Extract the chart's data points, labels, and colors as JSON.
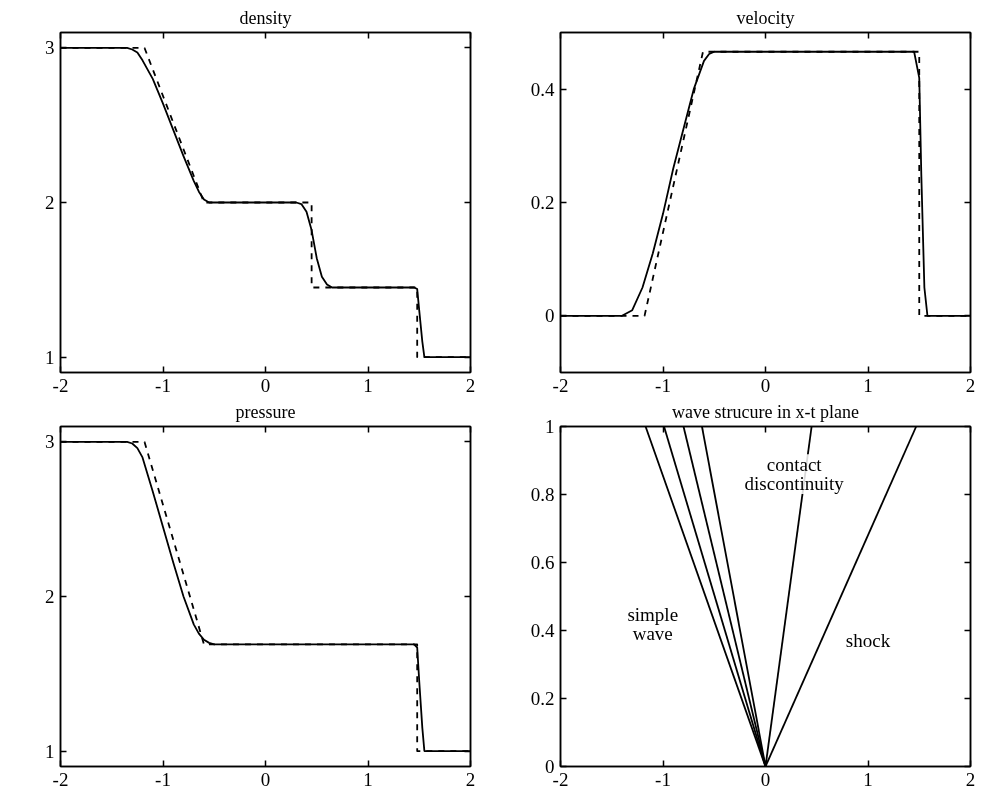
{
  "chart_data": [
    {
      "type": "line",
      "title": "density",
      "xlim": [
        -2,
        2
      ],
      "ylim": [
        0.9,
        3.1
      ],
      "xticks": [
        -2,
        -1,
        0,
        1,
        2
      ],
      "yticks": [
        1,
        2,
        3
      ],
      "series": [
        {
          "color": "#000000",
          "line_style": "solid",
          "x": [
            -2,
            -1.35,
            -1.3,
            -1.25,
            -1.2,
            -1.1,
            -1.0,
            -0.9,
            -0.8,
            -0.7,
            -0.65,
            -0.6,
            -0.55,
            -0.5,
            0.3,
            0.35,
            0.4,
            0.45,
            0.5,
            0.55,
            0.6,
            0.65,
            1.45,
            1.48,
            1.5,
            1.53,
            1.55,
            2
          ],
          "values": [
            3,
            3,
            2.99,
            2.97,
            2.92,
            2.8,
            2.64,
            2.47,
            2.3,
            2.14,
            2.07,
            2.02,
            2.0,
            2.0,
            2.0,
            1.99,
            1.94,
            1.82,
            1.64,
            1.52,
            1.47,
            1.45,
            1.45,
            1.44,
            1.3,
            1.1,
            1.0,
            1.0
          ]
        },
        {
          "color": "#000000",
          "line_style": "dashed",
          "x": [
            -2,
            -1.18,
            -0.6,
            0.45,
            0.45,
            1.48,
            1.48,
            2
          ],
          "values": [
            3,
            3,
            2,
            2,
            1.45,
            1.45,
            1,
            1
          ]
        }
      ]
    },
    {
      "type": "line",
      "title": "velocity",
      "xlim": [
        -2,
        2
      ],
      "ylim": [
        -0.1,
        0.5
      ],
      "xticks": [
        -2,
        -1,
        0,
        1,
        2
      ],
      "yticks": [
        0,
        0.2,
        0.4
      ],
      "series": [
        {
          "color": "#000000",
          "line_style": "solid",
          "x": [
            -2,
            -1.4,
            -1.3,
            -1.2,
            -1.1,
            -1.0,
            -0.9,
            -0.8,
            -0.7,
            -0.6,
            -0.55,
            -0.5,
            1.45,
            1.5,
            1.52,
            1.55,
            1.58,
            2
          ],
          "values": [
            0,
            0,
            0.01,
            0.05,
            0.11,
            0.18,
            0.26,
            0.33,
            0.4,
            0.45,
            0.462,
            0.466,
            0.466,
            0.42,
            0.25,
            0.05,
            0,
            0
          ]
        },
        {
          "color": "#000000",
          "line_style": "dashed",
          "x": [
            -2,
            -1.18,
            -0.61,
            1.5,
            1.5,
            2
          ],
          "values": [
            0,
            0,
            0.466,
            0.466,
            0,
            0
          ]
        }
      ]
    },
    {
      "type": "line",
      "title": "pressure",
      "xlim": [
        -2,
        2
      ],
      "ylim": [
        0.9,
        3.1
      ],
      "xticks": [
        -2,
        -1,
        0,
        1,
        2
      ],
      "yticks": [
        1,
        2,
        3
      ],
      "series": [
        {
          "color": "#000000",
          "line_style": "solid",
          "x": [
            -2,
            -1.35,
            -1.3,
            -1.25,
            -1.2,
            -1.1,
            -1.0,
            -0.9,
            -0.8,
            -0.7,
            -0.65,
            -0.6,
            -0.55,
            -0.5,
            1.45,
            1.48,
            1.5,
            1.53,
            1.55,
            2
          ],
          "values": [
            3,
            3,
            2.99,
            2.96,
            2.9,
            2.68,
            2.45,
            2.22,
            2.0,
            1.82,
            1.76,
            1.72,
            1.7,
            1.69,
            1.69,
            1.67,
            1.45,
            1.15,
            1,
            1
          ]
        },
        {
          "color": "#000000",
          "line_style": "dashed",
          "x": [
            -2,
            -1.18,
            -0.6,
            1.48,
            1.48,
            2
          ],
          "values": [
            3,
            3,
            1.69,
            1.69,
            1,
            1
          ]
        }
      ]
    },
    {
      "type": "line",
      "title": "wave strucure in x-t plane",
      "xlim": [
        -2,
        2
      ],
      "ylim": [
        0,
        1
      ],
      "xticks": [
        -2,
        -1,
        0,
        1,
        2
      ],
      "yticks": [
        0,
        0.2,
        0.4,
        0.6,
        0.8,
        1
      ],
      "series": [
        {
          "color": "#000000",
          "line_style": "solid",
          "x": [
            0,
            -1.17
          ],
          "values": [
            0,
            1
          ]
        },
        {
          "color": "#000000",
          "line_style": "solid",
          "x": [
            0,
            -0.99
          ],
          "values": [
            0,
            1
          ]
        },
        {
          "color": "#000000",
          "line_style": "solid",
          "x": [
            0,
            -0.8
          ],
          "values": [
            0,
            1
          ]
        },
        {
          "color": "#000000",
          "line_style": "solid",
          "x": [
            0,
            -0.62
          ],
          "values": [
            0,
            1
          ]
        },
        {
          "color": "#000000",
          "line_style": "solid",
          "x": [
            0,
            0.45
          ],
          "values": [
            0,
            1
          ]
        },
        {
          "color": "#000000",
          "line_style": "solid",
          "x": [
            0,
            1.47
          ],
          "values": [
            0,
            1
          ]
        }
      ],
      "annotations": [
        "simple wave",
        "contact discontinuity",
        "shock"
      ]
    }
  ]
}
